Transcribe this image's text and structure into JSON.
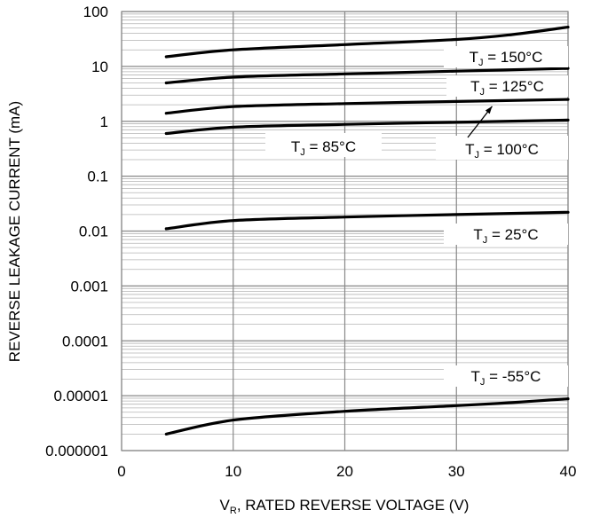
{
  "chart_data": {
    "type": "line",
    "title": "",
    "xlabel": "V_R, RATED REVERSE VOLTAGE (V)",
    "xlabel_main": "V",
    "xlabel_sub": "R",
    "xlabel_rest": ", RATED REVERSE VOLTAGE (V)",
    "ylabel": "REVERSE LEAKAGE CURRENT (mA)",
    "x_scale": "linear",
    "y_scale": "log",
    "xlim": [
      0,
      40
    ],
    "ylim": [
      1e-06,
      100
    ],
    "x_ticks": [
      "0",
      "10",
      "20",
      "30",
      "40"
    ],
    "y_ticks": [
      "0.000001",
      "0.00001",
      "0.0001",
      "0.001",
      "0.01",
      "0.1",
      "1",
      "10",
      "100"
    ],
    "grid": true,
    "series": [
      {
        "name": "T_J = 150°C",
        "label_main": "T",
        "label_sub": "J",
        "label_rest": " = 150°C",
        "x": [
          4,
          10,
          20,
          30,
          35,
          40
        ],
        "y": [
          15,
          20,
          25,
          31,
          38,
          52
        ]
      },
      {
        "name": "T_J = 125°C",
        "label_main": "T",
        "label_sub": "J",
        "label_rest": " = 125°C",
        "x": [
          4,
          10,
          20,
          30,
          40
        ],
        "y": [
          5,
          6.4,
          7.3,
          8.2,
          9.2
        ]
      },
      {
        "name": "T_J = 100°C",
        "label_main": "T",
        "label_sub": "J",
        "label_rest": " = 100°C",
        "x": [
          4,
          10,
          20,
          30,
          40
        ],
        "y": [
          1.4,
          1.85,
          2.1,
          2.3,
          2.5
        ]
      },
      {
        "name": "T_J = 85°C",
        "label_main": "T",
        "label_sub": "J",
        "label_rest": " = 85°C",
        "x": [
          4,
          10,
          20,
          30,
          40
        ],
        "y": [
          0.6,
          0.78,
          0.88,
          0.96,
          1.05
        ]
      },
      {
        "name": "T_J = 25°C",
        "label_main": "T",
        "label_sub": "J",
        "label_rest": " = 25°C",
        "x": [
          4,
          10,
          20,
          30,
          40
        ],
        "y": [
          0.011,
          0.0155,
          0.018,
          0.02,
          0.022
        ]
      },
      {
        "name": "T_J = -55°C",
        "label_main": "T",
        "label_sub": "J",
        "label_rest": " = -55°C",
        "x": [
          4,
          10,
          20,
          30,
          35,
          40
        ],
        "y": [
          2e-06,
          3.6e-06,
          5.2e-06,
          6.6e-06,
          7.5e-06,
          8.8e-06
        ]
      }
    ]
  },
  "colors": {
    "curve": "#000000",
    "major_grid": "#888888",
    "minor_grid": "#b4b4b4",
    "frame": "#888888",
    "label_box": "#ffffff"
  }
}
